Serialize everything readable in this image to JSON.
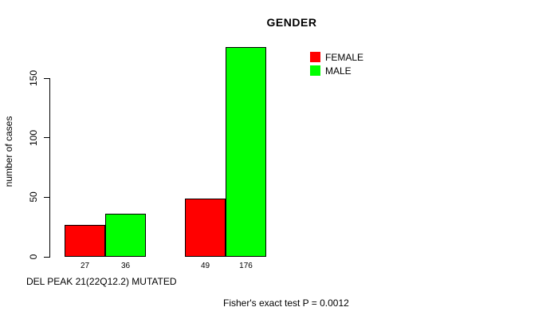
{
  "chart_data": {
    "type": "bar",
    "title": "GENDER",
    "ylabel": "number of cases",
    "xlabel": "DEL PEAK 21(22Q12.2) MUTATED",
    "annotation": "Fisher's exact test P = 0.0012",
    "ylim": [
      0,
      150
    ],
    "yticks": [
      0,
      50,
      100,
      150
    ],
    "grid": false,
    "legend_position": "top-right",
    "categories": [
      "",
      ""
    ],
    "series": [
      {
        "name": "FEMALE",
        "color": "#ff0000",
        "values": [
          27,
          49
        ]
      },
      {
        "name": "MALE",
        "color": "#00ff00",
        "values": [
          36,
          176
        ]
      }
    ],
    "bar_value_labels": [
      "27",
      "36",
      "49",
      "176"
    ]
  }
}
